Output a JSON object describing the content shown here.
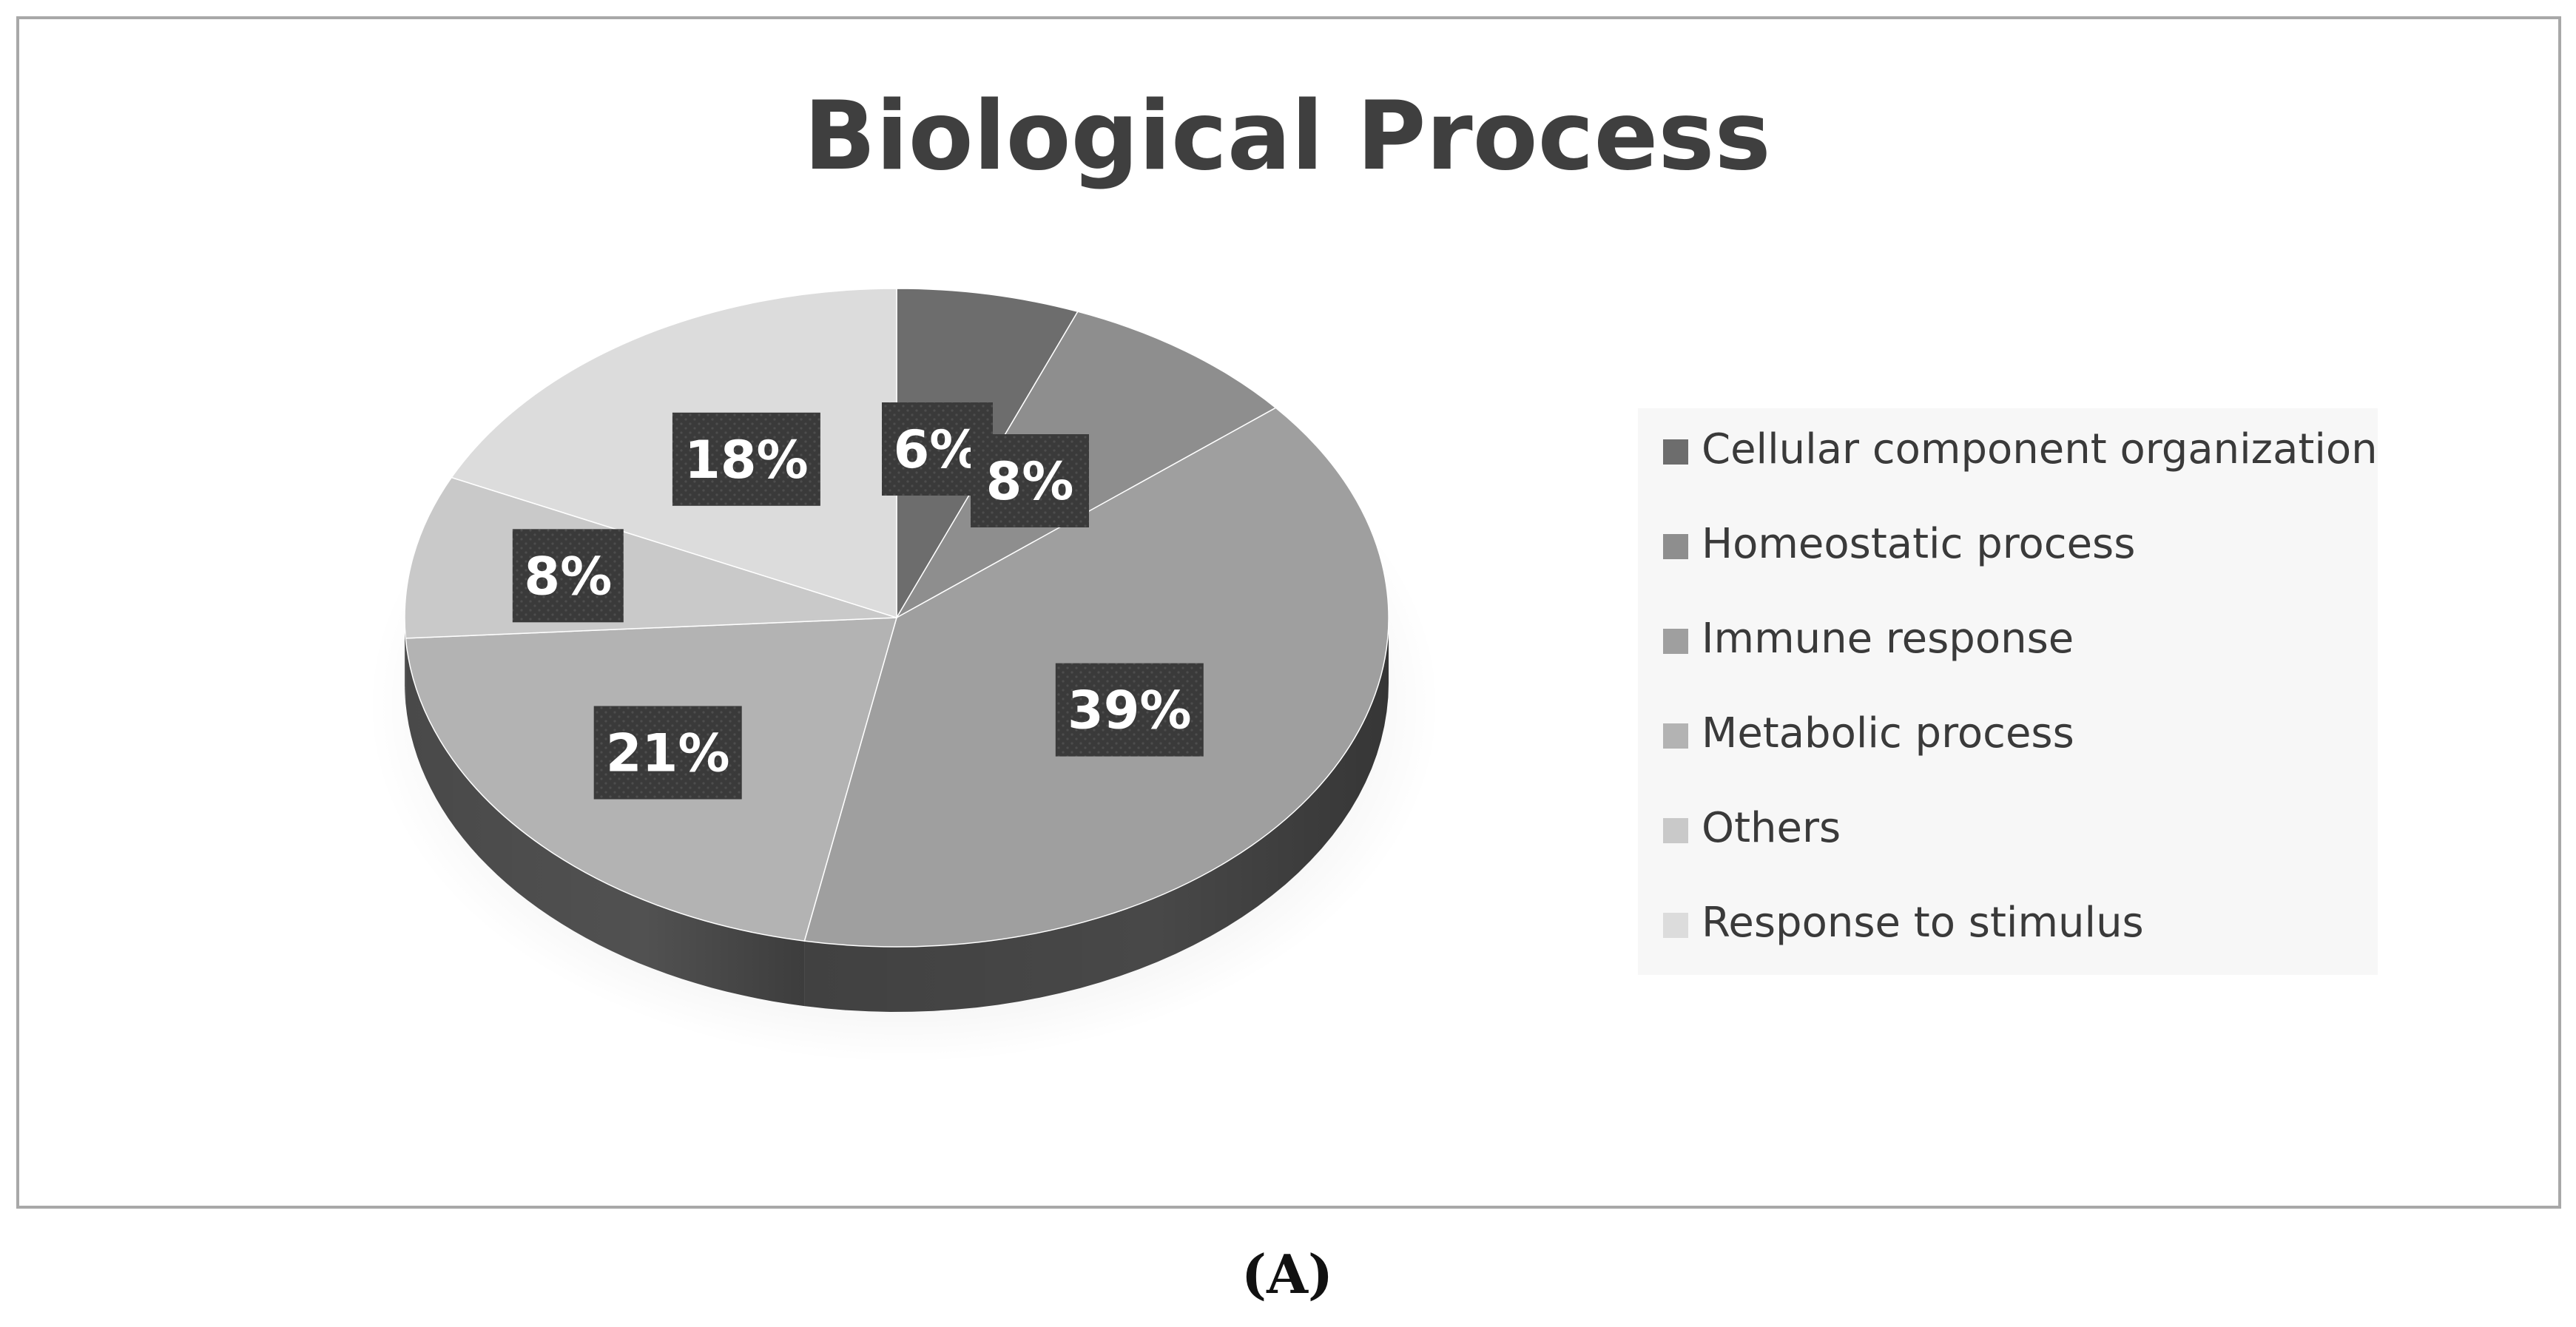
{
  "chart_data": {
    "type": "pie",
    "title": "Biological Process",
    "categories": [
      "Cellular component organization",
      "Homeostatic process",
      "Immune response",
      "Metabolic process",
      "Others",
      "Response to stimulus"
    ],
    "values": [
      6,
      8,
      39,
      21,
      8,
      18
    ],
    "data_labels": [
      "6%",
      "8%",
      "39%",
      "21%",
      "8%",
      "18%"
    ],
    "colors": [
      "#6d6d6d",
      "#8e8e8e",
      "#9f9f9f",
      "#b3b3b3",
      "#c9c9c9",
      "#dcdcdc"
    ],
    "label_fill": "#3a3a3a",
    "legend_placement": "right",
    "style": "3d"
  },
  "caption": "(A)"
}
